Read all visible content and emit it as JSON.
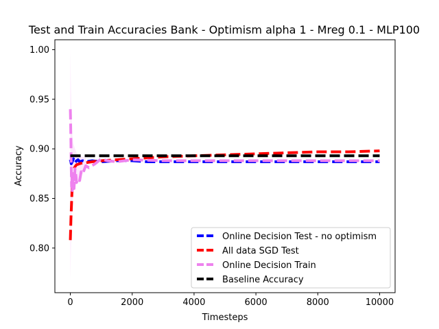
{
  "chart_data": {
    "type": "line",
    "title": "Test and Train Accuracies Bank - Optimism alpha 1 - Mreg 0.1 - MLP100",
    "xlabel": "Timesteps",
    "ylabel": "Accuracy",
    "xlim": [
      -500,
      10500
    ],
    "ylim": [
      0.755,
      1.01
    ],
    "xticks": [
      0,
      2000,
      4000,
      6000,
      8000,
      10000
    ],
    "yticks": [
      0.8,
      0.85,
      0.9,
      0.95,
      1.0
    ],
    "xtick_labels": [
      "0",
      "2000",
      "4000",
      "6000",
      "8000",
      "10000"
    ],
    "ytick_labels": [
      "0.80",
      "0.85",
      "0.90",
      "0.95",
      "1.00"
    ],
    "grid": false,
    "legend_position": "lower-right",
    "series": [
      {
        "name": "Online Decision Test - no optimism",
        "color": "#0000ff",
        "style": "dashed",
        "x": [
          0,
          30,
          60,
          100,
          150,
          200,
          250,
          300,
          400,
          500,
          700,
          1000,
          1500,
          2000,
          2500,
          3000,
          4000,
          5000,
          6000,
          7000,
          8000,
          9000,
          10000
        ],
        "y": [
          0.889,
          0.885,
          0.887,
          0.89,
          0.886,
          0.888,
          0.889,
          0.887,
          0.888,
          0.887,
          0.888,
          0.887,
          0.888,
          0.888,
          0.887,
          0.887,
          0.887,
          0.887,
          0.887,
          0.887,
          0.887,
          0.887,
          0.887
        ]
      },
      {
        "name": "All data SGD Test",
        "color": "#ff0000",
        "style": "dashed",
        "x": [
          0,
          20,
          40,
          60,
          80,
          100,
          150,
          200,
          300,
          400,
          500,
          700,
          1000,
          1500,
          2000,
          3000,
          4000,
          5000,
          6000,
          7000,
          8000,
          9000,
          10000
        ],
        "y": [
          0.808,
          0.83,
          0.846,
          0.862,
          0.872,
          0.878,
          0.882,
          0.884,
          0.885,
          0.886,
          0.886,
          0.887,
          0.888,
          0.889,
          0.89,
          0.892,
          0.893,
          0.894,
          0.895,
          0.896,
          0.897,
          0.897,
          0.898
        ]
      },
      {
        "name": "Online Decision Train",
        "color": "#ee82ee",
        "style": "dashed",
        "x": [
          0,
          10,
          20,
          30,
          40,
          50,
          60,
          80,
          100,
          120,
          150,
          180,
          200,
          250,
          300,
          350,
          400,
          500,
          600,
          800,
          1000,
          1200,
          1500,
          2000,
          3000,
          4000,
          5000,
          6000,
          7000,
          8000,
          9000,
          10000
        ],
        "y": [
          0.94,
          0.925,
          0.905,
          0.88,
          0.862,
          0.872,
          0.858,
          0.868,
          0.875,
          0.86,
          0.88,
          0.873,
          0.866,
          0.87,
          0.868,
          0.877,
          0.875,
          0.883,
          0.881,
          0.885,
          0.89,
          0.888,
          0.887,
          0.889,
          0.888,
          0.888,
          0.888,
          0.888,
          0.888,
          0.888,
          0.888,
          0.888
        ]
      },
      {
        "name": "Baseline Accuracy",
        "color": "#000000",
        "style": "dashed",
        "x": [
          0,
          10000
        ],
        "y": [
          0.893,
          0.893
        ]
      }
    ],
    "bands": [
      {
        "name": "train-variance",
        "color": "#ee82ee",
        "x": [
          0,
          20,
          40,
          60,
          100,
          150,
          200,
          300,
          500
        ],
        "upper": [
          1.0,
          0.96,
          0.93,
          0.915,
          0.905,
          0.9,
          0.896,
          0.893,
          0.891
        ],
        "lower": [
          0.767,
          0.8,
          0.83,
          0.845,
          0.855,
          0.862,
          0.866,
          0.872,
          0.878
        ]
      }
    ]
  }
}
